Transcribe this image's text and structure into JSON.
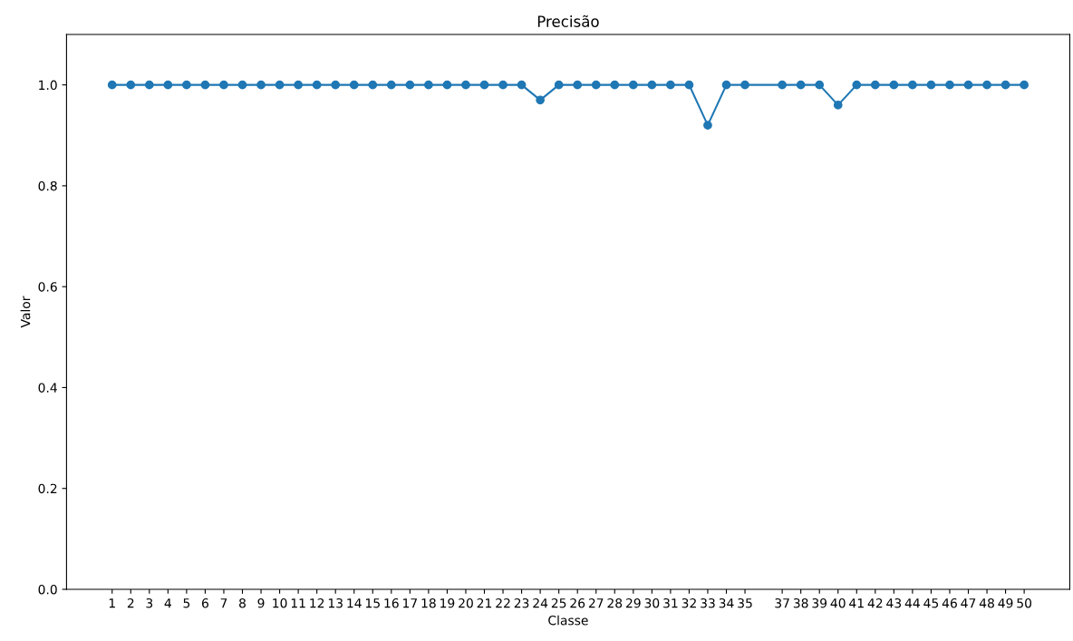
{
  "chart_data": {
    "type": "line",
    "title": "Precisão",
    "xlabel": "Classe",
    "ylabel": "Valor",
    "x": [
      1,
      2,
      3,
      4,
      5,
      6,
      7,
      8,
      9,
      10,
      11,
      12,
      13,
      14,
      15,
      16,
      17,
      18,
      19,
      20,
      21,
      22,
      23,
      24,
      25,
      26,
      27,
      28,
      29,
      30,
      31,
      32,
      33,
      34,
      35,
      37,
      38,
      39,
      40,
      41,
      42,
      43,
      44,
      45,
      46,
      47,
      48,
      49,
      50
    ],
    "series": [
      {
        "color": "#1f77b4",
        "values": [
          1,
          1,
          1,
          1,
          1,
          1,
          1,
          1,
          1,
          1,
          1,
          1,
          1,
          1,
          1,
          1,
          1,
          1,
          1,
          1,
          1,
          1,
          1,
          0.97,
          1,
          1,
          1,
          1,
          1,
          1,
          1,
          1,
          0.92,
          1,
          1,
          1,
          1,
          1,
          0.96,
          1,
          1,
          1,
          1,
          1,
          1,
          1,
          1,
          1,
          1
        ]
      }
    ],
    "xlim": [
      -1.45,
      52.45
    ],
    "xticks": [
      1,
      2,
      3,
      4,
      5,
      6,
      7,
      8,
      9,
      10,
      11,
      12,
      13,
      14,
      15,
      16,
      17,
      18,
      19,
      20,
      21,
      22,
      23,
      24,
      25,
      26,
      27,
      28,
      29,
      30,
      31,
      32,
      33,
      34,
      35,
      37,
      38,
      39,
      40,
      41,
      42,
      43,
      44,
      45,
      46,
      47,
      48,
      49,
      50
    ],
    "ylim": [
      0,
      1.1
    ],
    "yticks": [
      {
        "value": 0,
        "label": "0.0"
      },
      0.2,
      0.4,
      0.6,
      0.8,
      {
        "value": 1,
        "label": "1.0"
      }
    ],
    "marker": "circle",
    "line_style": "solid",
    "grid": false,
    "legend": false
  }
}
